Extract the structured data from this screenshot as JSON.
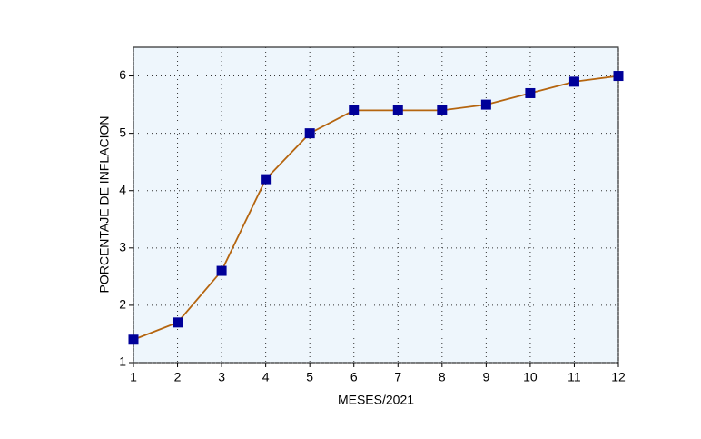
{
  "chart_data": {
    "type": "line",
    "x_label": "MESES/2021",
    "y_label": "PORCENTAJE DE INFLACION",
    "x": [
      1,
      2,
      3,
      4,
      5,
      6,
      7,
      8,
      9,
      10,
      11,
      12
    ],
    "series": [
      {
        "name": "Inflación",
        "line_color": "#b5650f",
        "color": "#000099",
        "values": [
          1.4,
          1.7,
          2.6,
          4.2,
          5.0,
          5.4,
          5.4,
          5.4,
          5.5,
          5.7,
          5.9,
          6.0
        ]
      }
    ],
    "xlim": [
      1,
      12
    ],
    "ylim": [
      1,
      6.5
    ],
    "xticks": [
      1,
      2,
      3,
      4,
      5,
      6,
      7,
      8,
      9,
      10,
      11,
      12
    ],
    "yticks": [
      1,
      2,
      3,
      4,
      5,
      6
    ],
    "grid": true,
    "plot_background": "#eef6fc"
  }
}
